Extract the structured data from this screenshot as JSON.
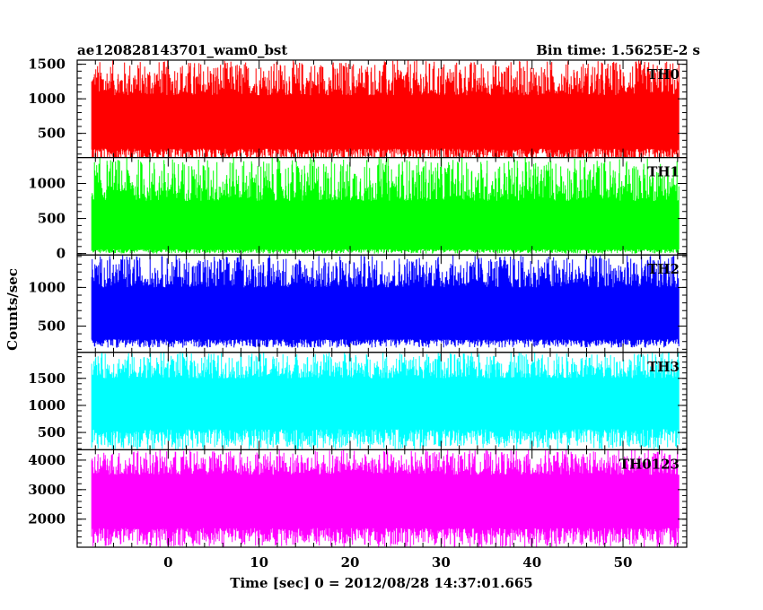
{
  "header": {
    "title": "ae120828143701_wam0_bst",
    "bin_time": "Bin time: 1.5625E-2 s"
  },
  "axes": {
    "ylabel": "Counts/sec",
    "xlabel": "Time [sec] 0 = 2012/08/28 14:37:01.665"
  },
  "chart_data": {
    "type": "line",
    "title": "ae120828143701_wam0_bst",
    "subtitle": "Bin time: 1.5625E-2 s",
    "xlabel": "Time [sec] 0 = 2012/08/28 14:37:01.665",
    "ylabel": "Counts/sec",
    "xlim": [
      -10,
      57
    ],
    "data_x_range": [
      -8.4,
      56.1
    ],
    "x_ticks": [
      0,
      10,
      20,
      30,
      40,
      50
    ],
    "grid": false,
    "panels": [
      {
        "label": "TH0",
        "color": "#ff0000",
        "ylim": [
          150,
          1560
        ],
        "y_ticks": [
          500,
          1000,
          1500
        ],
        "band_low": 280,
        "band_high": 1050,
        "typ_min": 80,
        "typ_max": 1560
      },
      {
        "label": "TH1",
        "color": "#00ff00",
        "ylim": [
          -20,
          1370
        ],
        "y_ticks": [
          0,
          500,
          1000
        ],
        "band_low": 60,
        "band_high": 750,
        "typ_min": 0,
        "typ_max": 1370
      },
      {
        "label": "TH2",
        "color": "#0000ff",
        "ylim": [
          160,
          1420
        ],
        "y_ticks": [
          500,
          1000
        ],
        "band_low": 330,
        "band_high": 1000,
        "typ_min": 220,
        "typ_max": 1420
      },
      {
        "label": "TH3",
        "color": "#00ffff",
        "ylim": [
          180,
          1980
        ],
        "y_ticks": [
          500,
          1000,
          1500
        ],
        "band_low": 560,
        "band_high": 1500,
        "typ_min": 180,
        "typ_max": 1980
      },
      {
        "label": "TH0123",
        "color": "#ff00ff",
        "ylim": [
          1050,
          4350
        ],
        "y_ticks": [
          2000,
          3000,
          4000
        ],
        "band_low": 1700,
        "band_high": 3500,
        "typ_min": 1050,
        "typ_max": 4350
      }
    ]
  }
}
